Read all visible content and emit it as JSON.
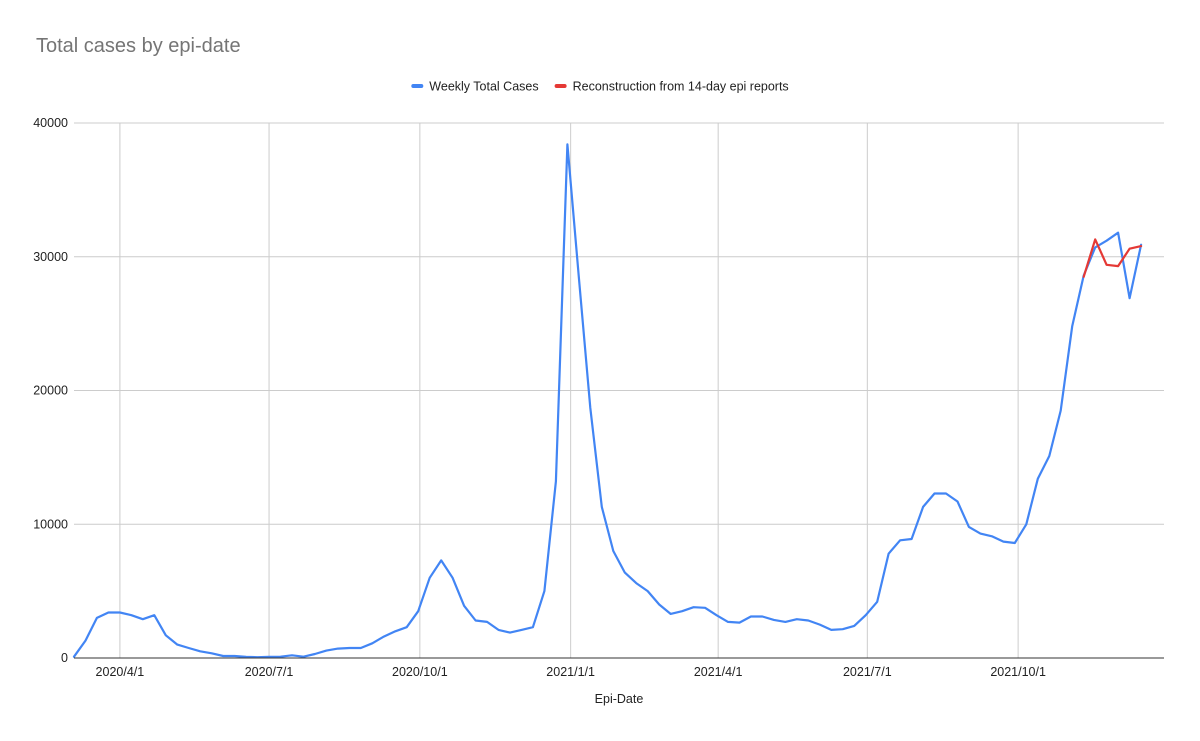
{
  "chart_data": {
    "type": "line",
    "title": "Total cases by epi-date",
    "xlabel": "Epi-Date",
    "ylabel": "",
    "ylim": [
      0,
      40000
    ],
    "xlim": [
      "2020-03-04",
      "2021-12-29"
    ],
    "y_ticks": [
      0,
      10000,
      20000,
      30000,
      40000
    ],
    "y_tick_labels": [
      "0",
      "10000",
      "20000",
      "30000",
      "40000"
    ],
    "x_ticks": [
      "2020-04-01",
      "2020-07-01",
      "2020-10-01",
      "2021-01-01",
      "2021-04-01",
      "2021-07-01",
      "2021-10-01"
    ],
    "x_tick_labels": [
      "2020/4/1",
      "2020/7/1",
      "2020/10/1",
      "2021/1/1",
      "2021/4/1",
      "2021/7/1",
      "2021/10/1"
    ],
    "grid": true,
    "legend_position": "top",
    "series": [
      {
        "name": "Weekly Total Cases",
        "color": "#4285f4",
        "points": [
          [
            "2020-03-04",
            100
          ],
          [
            "2020-03-11",
            1300
          ],
          [
            "2020-03-18",
            3000
          ],
          [
            "2020-03-25",
            3400
          ],
          [
            "2020-04-01",
            3400
          ],
          [
            "2020-04-08",
            3200
          ],
          [
            "2020-04-15",
            2900
          ],
          [
            "2020-04-22",
            3200
          ],
          [
            "2020-04-29",
            1700
          ],
          [
            "2020-05-06",
            1000
          ],
          [
            "2020-05-13",
            750
          ],
          [
            "2020-05-20",
            500
          ],
          [
            "2020-05-27",
            350
          ],
          [
            "2020-06-03",
            150
          ],
          [
            "2020-06-10",
            150
          ],
          [
            "2020-06-17",
            80
          ],
          [
            "2020-06-24",
            60
          ],
          [
            "2020-07-01",
            80
          ],
          [
            "2020-07-08",
            100
          ],
          [
            "2020-07-15",
            200
          ],
          [
            "2020-07-22",
            100
          ],
          [
            "2020-07-29",
            300
          ],
          [
            "2020-08-05",
            550
          ],
          [
            "2020-08-12",
            700
          ],
          [
            "2020-08-19",
            750
          ],
          [
            "2020-08-26",
            750
          ],
          [
            "2020-09-02",
            1100
          ],
          [
            "2020-09-09",
            1600
          ],
          [
            "2020-09-16",
            2000
          ],
          [
            "2020-09-23",
            2300
          ],
          [
            "2020-09-30",
            3500
          ],
          [
            "2020-10-07",
            6000
          ],
          [
            "2020-10-14",
            7300
          ],
          [
            "2020-10-21",
            6000
          ],
          [
            "2020-10-28",
            3900
          ],
          [
            "2020-11-04",
            2800
          ],
          [
            "2020-11-11",
            2700
          ],
          [
            "2020-11-18",
            2100
          ],
          [
            "2020-11-25",
            1900
          ],
          [
            "2020-12-02",
            2100
          ],
          [
            "2020-12-09",
            2300
          ],
          [
            "2020-12-16",
            5000
          ],
          [
            "2020-12-23",
            13200
          ],
          [
            "2020-12-30",
            38400
          ],
          [
            "2021-01-06",
            28500
          ],
          [
            "2021-01-13",
            18700
          ],
          [
            "2021-01-20",
            11300
          ],
          [
            "2021-01-27",
            8000
          ],
          [
            "2021-02-03",
            6400
          ],
          [
            "2021-02-10",
            5600
          ],
          [
            "2021-02-17",
            5000
          ],
          [
            "2021-02-24",
            4000
          ],
          [
            "2021-03-03",
            3300
          ],
          [
            "2021-03-10",
            3500
          ],
          [
            "2021-03-17",
            3800
          ],
          [
            "2021-03-24",
            3750
          ],
          [
            "2021-03-31",
            3200
          ],
          [
            "2021-04-07",
            2700
          ],
          [
            "2021-04-14",
            2650
          ],
          [
            "2021-04-21",
            3100
          ],
          [
            "2021-04-28",
            3100
          ],
          [
            "2021-05-05",
            2850
          ],
          [
            "2021-05-12",
            2700
          ],
          [
            "2021-05-19",
            2900
          ],
          [
            "2021-05-26",
            2800
          ],
          [
            "2021-06-02",
            2500
          ],
          [
            "2021-06-09",
            2100
          ],
          [
            "2021-06-16",
            2150
          ],
          [
            "2021-06-23",
            2400
          ],
          [
            "2021-06-30",
            3200
          ],
          [
            "2021-07-07",
            4200
          ],
          [
            "2021-07-14",
            7800
          ],
          [
            "2021-07-21",
            8800
          ],
          [
            "2021-07-28",
            8900
          ],
          [
            "2021-08-04",
            11300
          ],
          [
            "2021-08-11",
            12300
          ],
          [
            "2021-08-18",
            12300
          ],
          [
            "2021-08-25",
            11700
          ],
          [
            "2021-09-01",
            9800
          ],
          [
            "2021-09-08",
            9300
          ],
          [
            "2021-09-15",
            9100
          ],
          [
            "2021-09-22",
            8700
          ],
          [
            "2021-09-29",
            8600
          ],
          [
            "2021-10-06",
            10000
          ],
          [
            "2021-10-13",
            13400
          ],
          [
            "2021-10-20",
            15100
          ],
          [
            "2021-10-27",
            18500
          ],
          [
            "2021-11-03",
            24800
          ],
          [
            "2021-11-10",
            28600
          ],
          [
            "2021-11-17",
            30700
          ],
          [
            "2021-11-24",
            31200
          ],
          [
            "2021-12-01",
            31800
          ],
          [
            "2021-12-08",
            26900
          ],
          [
            "2021-12-15",
            30900
          ]
        ]
      },
      {
        "name": "Reconstruction from 14-day epi reports",
        "color": "#e53935",
        "points": [
          [
            "2021-11-10",
            28500
          ],
          [
            "2021-11-17",
            31300
          ],
          [
            "2021-11-24",
            29400
          ],
          [
            "2021-12-01",
            29300
          ],
          [
            "2021-12-08",
            30600
          ],
          [
            "2021-12-15",
            30800
          ]
        ]
      }
    ]
  }
}
